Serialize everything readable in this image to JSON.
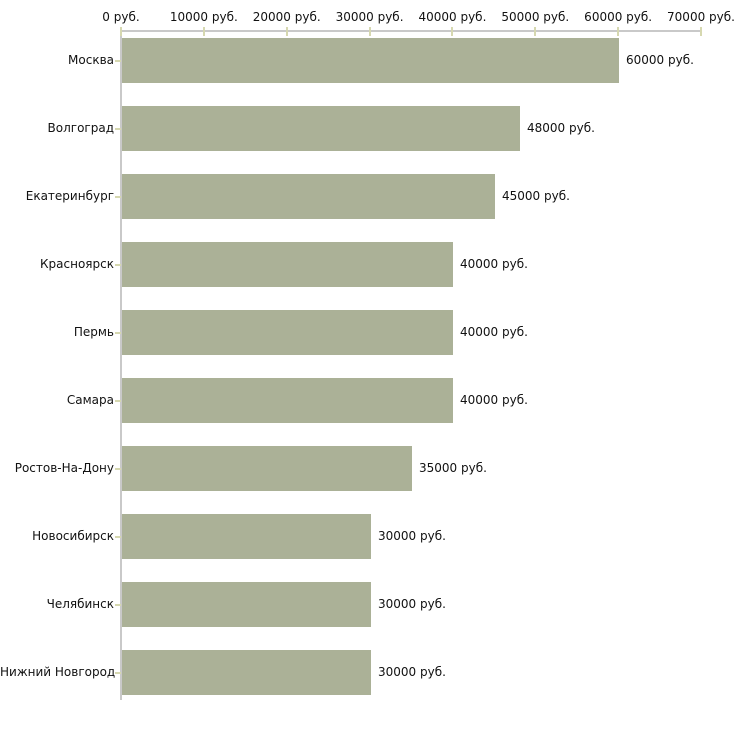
{
  "chart_data": {
    "type": "bar",
    "orientation": "horizontal",
    "title": "",
    "xlabel": "",
    "ylabel": "",
    "unit": "руб.",
    "categories": [
      "Москва",
      "Волгоград",
      "Екатеринбург",
      "Красноярск",
      "Пермь",
      "Самара",
      "Ростов-На-Дону",
      "Новосибирск",
      "Челябинск",
      "Нижний Новгород"
    ],
    "values": [
      60000,
      48000,
      45000,
      40000,
      40000,
      40000,
      35000,
      30000,
      30000,
      30000
    ],
    "value_labels": [
      "60000 руб.",
      "48000 руб.",
      "45000 руб.",
      "40000 руб.",
      "40000 руб.",
      "40000 руб.",
      "35000 руб.",
      "30000 руб.",
      "30000 руб.",
      "30000 руб."
    ],
    "x_axis": {
      "position": "top",
      "range": [
        0,
        70000
      ],
      "ticks": [
        0,
        10000,
        20000,
        30000,
        40000,
        50000,
        60000,
        70000
      ],
      "tick_labels": [
        "0 руб.",
        "10000 руб.",
        "20000 руб.",
        "30000 руб.",
        "40000 руб.",
        "50000 руб.",
        "60000 руб.",
        "70000 руб."
      ]
    },
    "grid": false,
    "legend": false,
    "colors": {
      "bar": "#abb197",
      "axis_line": "#c9c9c9",
      "tick": "#d6d8b0",
      "text": "#111111",
      "background": "#ffffff"
    }
  }
}
